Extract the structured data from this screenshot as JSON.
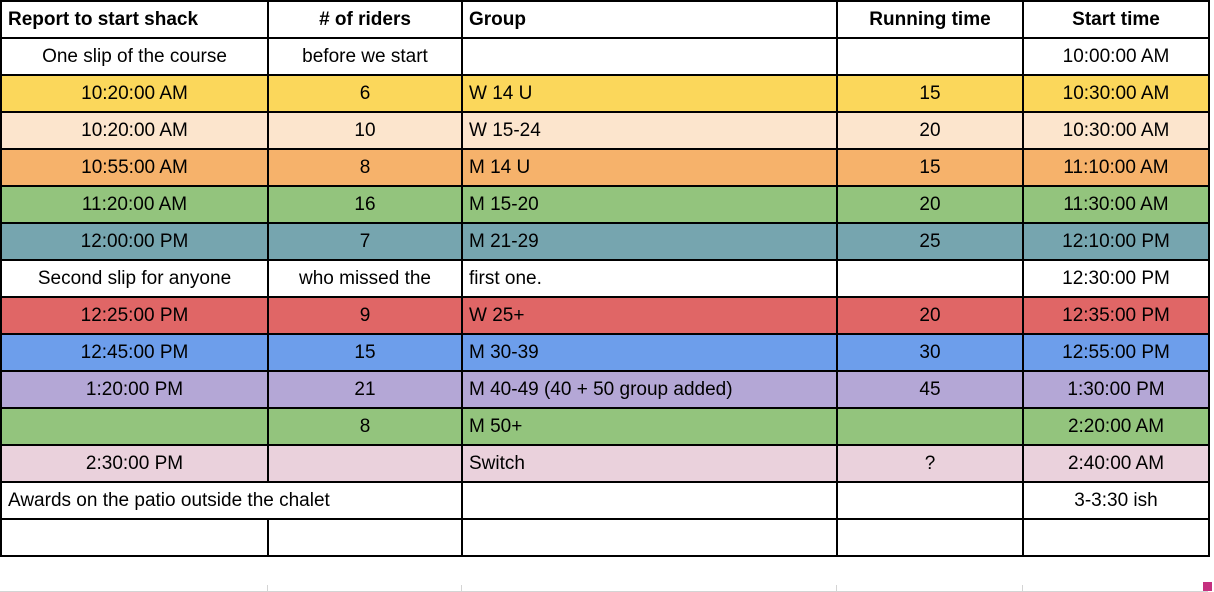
{
  "table": {
    "headers": [
      "Report to start shack",
      "# of riders",
      "Group",
      "Running time",
      "Start time"
    ],
    "rows": [
      {
        "bg": "#FFFFFF",
        "cells": [
          "One slip of the course",
          "before we start",
          "",
          "",
          "10:00:00 AM"
        ]
      },
      {
        "bg": "#FBD75B",
        "cells": [
          "10:20:00 AM",
          "6",
          "W 14 U",
          "15",
          "10:30:00 AM"
        ]
      },
      {
        "bg": "#FCE5CD",
        "cells": [
          "10:20:00 AM",
          "10",
          "W 15-24",
          "20",
          "10:30:00 AM"
        ]
      },
      {
        "bg": "#F6B26B",
        "cells": [
          "10:55:00 AM",
          "8",
          "M 14 U",
          "15",
          "11:10:00 AM"
        ]
      },
      {
        "bg": "#93C47D",
        "cells": [
          "11:20:00 AM",
          "16",
          "M 15-20",
          "20",
          "11:30:00 AM"
        ]
      },
      {
        "bg": "#76A5AF",
        "cells": [
          "12:00:00 PM",
          "7",
          "M 21-29",
          "25",
          "12:10:00 PM"
        ]
      },
      {
        "bg": "#FFFFFF",
        "cells": [
          "Second slip for anyone",
          "who missed the",
          "first one.",
          "",
          "12:30:00 PM"
        ]
      },
      {
        "bg": "#E06666",
        "cells": [
          "12:25:00 PM",
          "9",
          "W 25+",
          "20",
          "12:35:00 PM"
        ]
      },
      {
        "bg": "#6D9EEB",
        "cells": [
          "12:45:00 PM",
          "15",
          "M 30-39",
          "30",
          "12:55:00 PM"
        ]
      },
      {
        "bg": "#B4A7D6",
        "cells": [
          "1:20:00 PM",
          "21",
          "M 40-49 (40 + 50 group added)",
          "45",
          "1:30:00 PM"
        ]
      },
      {
        "bg": "#93C47D",
        "cells": [
          "",
          "8",
          "M 50+",
          "",
          "2:20:00 AM"
        ]
      },
      {
        "bg": "#EAD1DC",
        "cells": [
          "2:30:00 PM",
          "",
          "Switch",
          "?",
          "2:40:00 AM"
        ]
      },
      {
        "bg": "#FFFFFF",
        "colspan_first": 2,
        "cells": [
          "Awards on the patio outside the chalet",
          "",
          "",
          "3-3:30 ish"
        ]
      },
      {
        "bg": "#FFFFFF",
        "cells": [
          "",
          "",
          "",
          "",
          ""
        ]
      }
    ]
  },
  "collab_marker": {
    "color": "#C5307F"
  }
}
